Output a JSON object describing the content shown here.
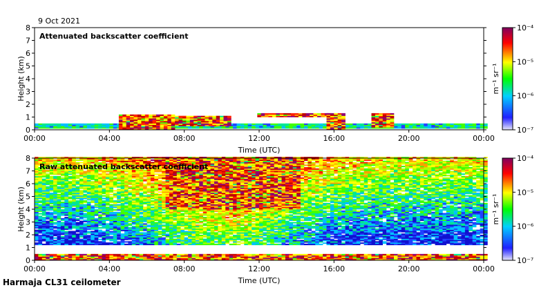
{
  "date": "9 Oct 2021",
  "footer": "Harmaja CL31 ceilometer",
  "chart_data": [
    {
      "type": "heatmap",
      "title": "Attenuated backscatter coefficient",
      "xlabel": "Time (UTC)",
      "ylabel": "Height (km)",
      "xlim": [
        0,
        24
      ],
      "ylim": [
        0,
        8
      ],
      "x_ticks": [
        "00:00",
        "04:00",
        "08:00",
        "12:00",
        "16:00",
        "20:00",
        "00:00"
      ],
      "y_ticks": [
        "0",
        "1",
        "2",
        "3",
        "4",
        "5",
        "6",
        "7",
        "8"
      ],
      "colorbar": {
        "label": "m⁻¹ sr⁻¹",
        "scale": "log",
        "range": [
          1e-07,
          0.0001
        ],
        "tick_labels": [
          "10⁻⁴",
          "10⁻⁵",
          "10⁻⁶",
          "10⁻⁷"
        ]
      },
      "features": [
        {
          "name": "surface layer",
          "time": [
            0,
            24
          ],
          "height": [
            0.1,
            0.45
          ],
          "intensity": "mid"
        },
        {
          "name": "strong near-surface returns",
          "time": [
            4.5,
            7.5
          ],
          "height": [
            0,
            1.2
          ],
          "intensity": "high"
        },
        {
          "name": "aerosol/cloud layer",
          "time": [
            7.5,
            10.3
          ],
          "height": [
            0.3,
            1.0
          ],
          "intensity": "high"
        },
        {
          "name": "cloud layer",
          "time": [
            11.9,
            15.7
          ],
          "height": [
            1.0,
            1.3
          ],
          "intensity": "high"
        },
        {
          "name": "rain / fog event",
          "time": [
            15.6,
            16.5
          ],
          "height": [
            0,
            1.3
          ],
          "intensity": "high"
        },
        {
          "name": "low cloud",
          "time": [
            18.0,
            19.0
          ],
          "height": [
            0.2,
            1.3
          ],
          "intensity": "high"
        }
      ]
    },
    {
      "type": "heatmap",
      "title": "Raw attenuated backscatter coefficient",
      "xlabel": "Time (UTC)",
      "ylabel": "Height (km)",
      "xlim": [
        0,
        24
      ],
      "ylim": [
        0,
        8
      ],
      "x_ticks": [
        "00:00",
        "04:00",
        "08:00",
        "12:00",
        "16:00",
        "20:00",
        "00:00"
      ],
      "y_ticks": [
        "0",
        "1",
        "2",
        "3",
        "4",
        "5",
        "6",
        "7",
        "8"
      ],
      "colorbar": {
        "label": "m⁻¹ sr⁻¹",
        "scale": "log",
        "range": [
          1e-07,
          0.0001
        ],
        "tick_labels": [
          "10⁻⁴",
          "10⁻⁵",
          "10⁻⁶",
          "10⁻⁷"
        ]
      },
      "features": [
        {
          "name": "noise field",
          "time": [
            0,
            24
          ],
          "height": [
            1.2,
            8
          ],
          "intensity": "noise"
        },
        {
          "name": "daytime noise maximum",
          "time": [
            7,
            14
          ],
          "height": [
            4,
            8
          ],
          "intensity": "high"
        },
        {
          "name": "surface layer",
          "time": [
            0,
            24
          ],
          "height": [
            0,
            0.5
          ],
          "intensity": "high"
        }
      ]
    }
  ],
  "colors": {
    "colormap": [
      "#e6e6fa",
      "#1010e0",
      "#00c8ff",
      "#00ff00",
      "#ffff00",
      "#ff0000",
      "#800080"
    ]
  }
}
